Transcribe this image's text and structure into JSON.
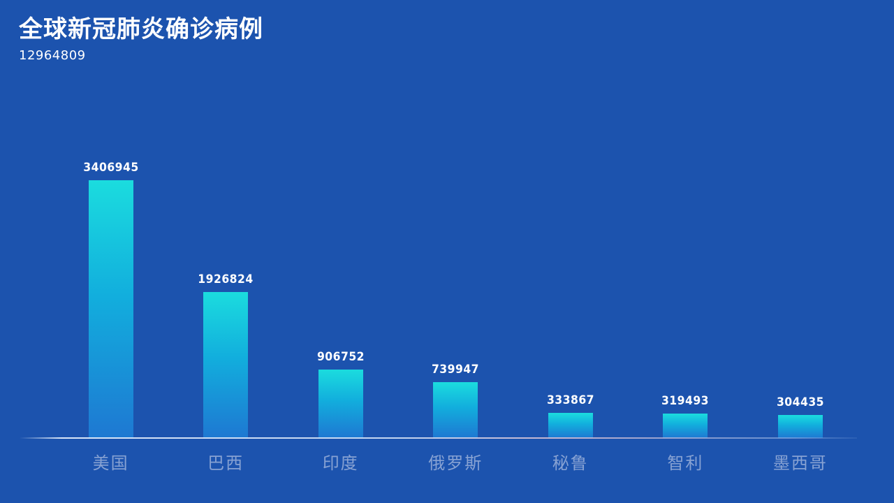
{
  "header": {
    "title": "全球新冠肺炎确诊病例",
    "total": "12964809"
  },
  "chart_data": {
    "type": "bar",
    "title": "全球新冠肺炎确诊病例",
    "subtitle_total": "12964809",
    "categories": [
      "美国",
      "巴西",
      "印度",
      "俄罗斯",
      "秘鲁",
      "智利",
      "墨西哥"
    ],
    "values": [
      3406945,
      1926824,
      906752,
      739947,
      333867,
      319493,
      304435
    ],
    "value_labels": [
      "3406945",
      "1926824",
      "906752",
      "739947",
      "333867",
      "319493",
      "304435"
    ],
    "xlabel": "",
    "ylabel": "",
    "ylim": [
      0,
      3406945
    ],
    "grid": false,
    "legend": false,
    "colors": {
      "background": "#1C53AE",
      "bar_gradient_top": "#1BDCDE",
      "bar_gradient_mid": "#12AEDD",
      "bar_gradient_bottom": "#1E78D2",
      "value_label": "#FFFFFF",
      "category_label": "#87A2D3",
      "axis_line": "#D9E4F6",
      "title": "#FFFFFF"
    }
  }
}
